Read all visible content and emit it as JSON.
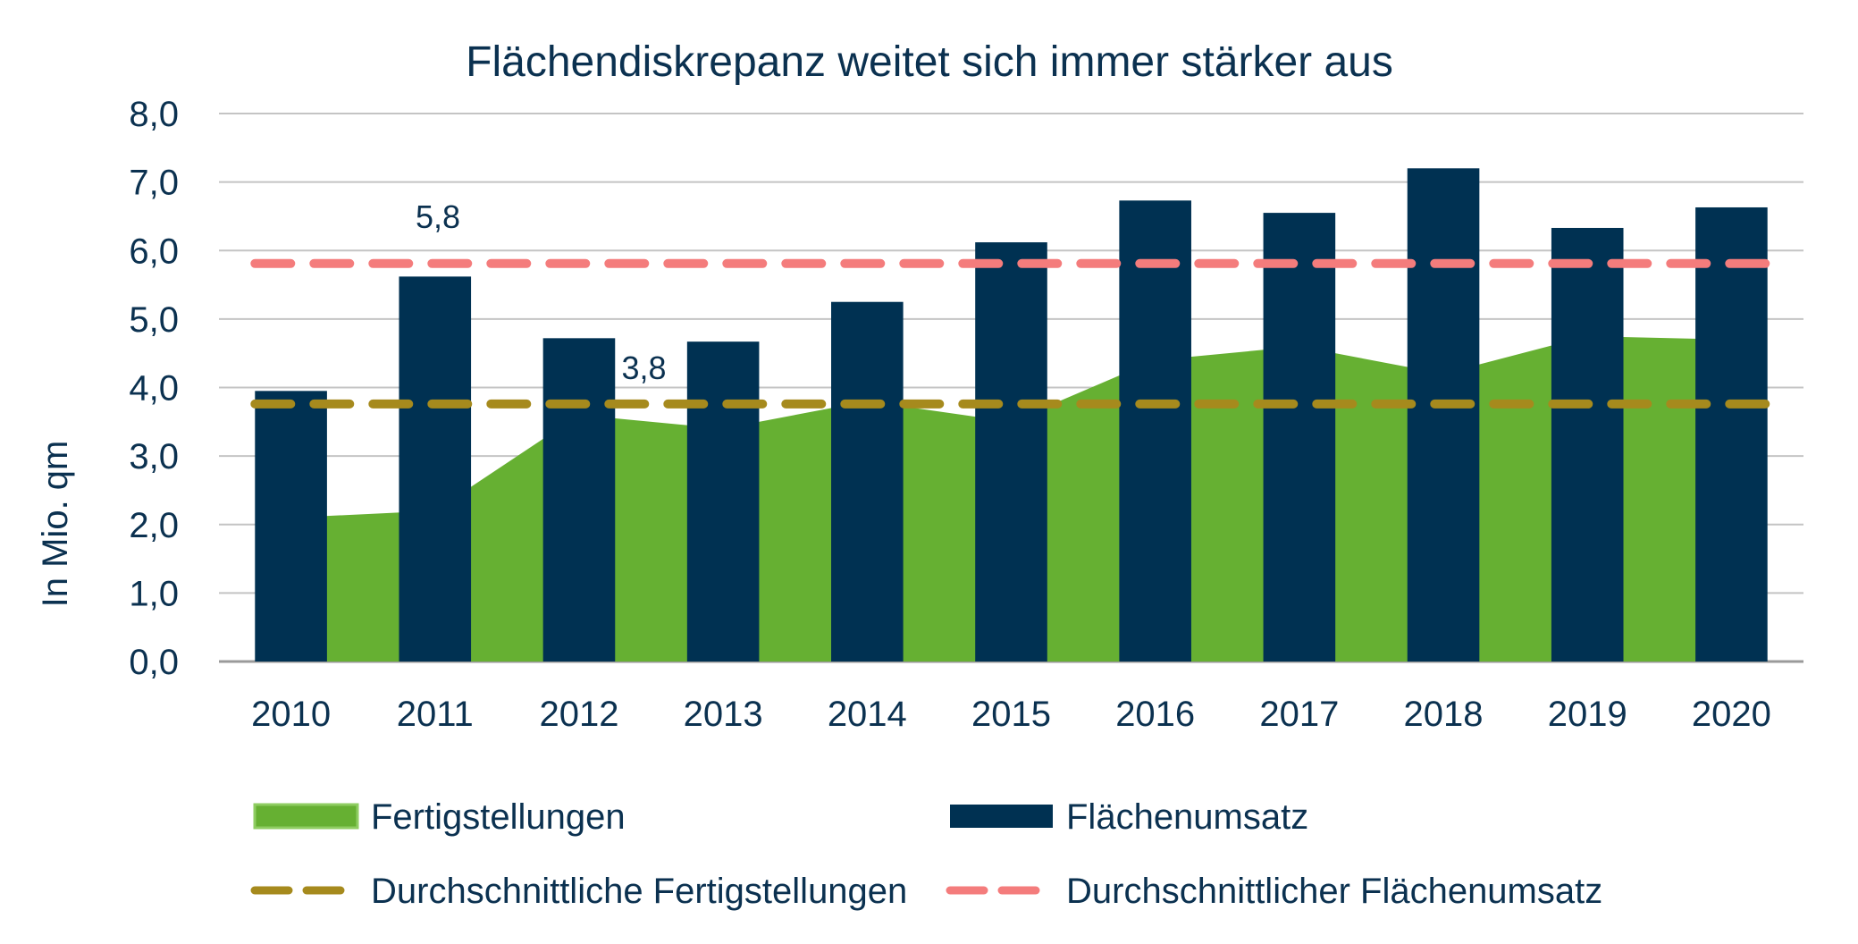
{
  "chart_data": {
    "type": "bar",
    "title": "Flächendiskrepanz weitet sich immer stärker aus",
    "ylabel": "In Mio. qm",
    "xlabel": "",
    "ylim": [
      0,
      8
    ],
    "yticks": [
      "0,0",
      "1,0",
      "2,0",
      "3,0",
      "4,0",
      "5,0",
      "6,0",
      "7,0",
      "8,0"
    ],
    "categories": [
      "2010",
      "2011",
      "2012",
      "2013",
      "2014",
      "2015",
      "2016",
      "2017",
      "2018",
      "2019",
      "2020"
    ],
    "grid": true,
    "legend_position": "bottom",
    "series": [
      {
        "name": "Fertigstellungen",
        "type": "area",
        "color": "#66b032",
        "values": [
          2.1,
          2.2,
          3.6,
          3.4,
          3.8,
          3.5,
          4.4,
          4.6,
          4.2,
          4.75,
          4.7
        ]
      },
      {
        "name": "Flächenumsatz",
        "type": "bar",
        "color": "#003152",
        "values": [
          3.95,
          5.62,
          4.72,
          4.67,
          5.25,
          6.12,
          6.73,
          6.55,
          7.2,
          6.33,
          6.63
        ]
      },
      {
        "name": "Durchschnittliche Fertigstellungen",
        "type": "line",
        "style": "dashed",
        "color": "#a68a1d",
        "value": 3.76,
        "label": "3,8"
      },
      {
        "name": "Durchschnittlicher Flächenumsatz",
        "type": "line",
        "style": "dashed",
        "color": "#f47c7c",
        "value": 5.81,
        "label": "5,8"
      }
    ]
  }
}
